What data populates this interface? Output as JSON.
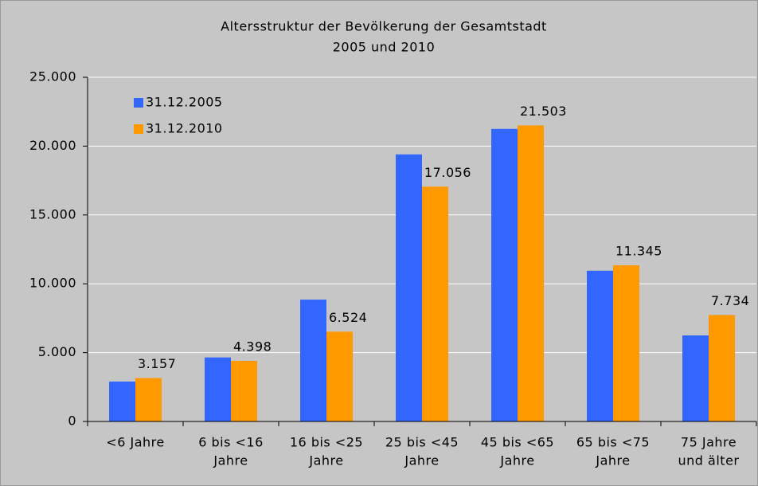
{
  "chart_data": {
    "type": "bar",
    "title": "Altersstruktur der Bevölkerung der Gesamtstadt",
    "subtitle": "2005 und 2010",
    "categories": [
      [
        "<6 Jahre"
      ],
      [
        "6 bis <16",
        "Jahre"
      ],
      [
        "16 bis <25",
        "Jahre"
      ],
      [
        "25 bis <45",
        "Jahre"
      ],
      [
        "45 bis <65",
        "Jahre"
      ],
      [
        "65 bis <75",
        "Jahre"
      ],
      [
        "75 Jahre",
        "und älter"
      ]
    ],
    "series": [
      {
        "name": "31.12.2005",
        "color": "#3366ff",
        "values": [
          2900,
          4650,
          8850,
          19400,
          21250,
          10950,
          6250
        ]
      },
      {
        "name": "31.12.2010",
        "color": "#ff9900",
        "values": [
          3157,
          4398,
          6524,
          17056,
          21503,
          11345,
          7734
        ],
        "value_labels": [
          "3.157",
          "4.398",
          "6.524",
          "17.056",
          "21.503",
          "11.345",
          "7.734"
        ]
      }
    ],
    "ylim": [
      0,
      25000
    ],
    "yticks": [
      0,
      {
        "value": 5000,
        "label": "5.000"
      },
      {
        "value": 10000,
        "label": "10.000"
      },
      {
        "value": 15000,
        "label": "15.000"
      },
      {
        "value": 20000,
        "label": "20.000"
      },
      {
        "value": 25000,
        "label": "25.000"
      }
    ],
    "grid": true,
    "legend": "upper left"
  }
}
